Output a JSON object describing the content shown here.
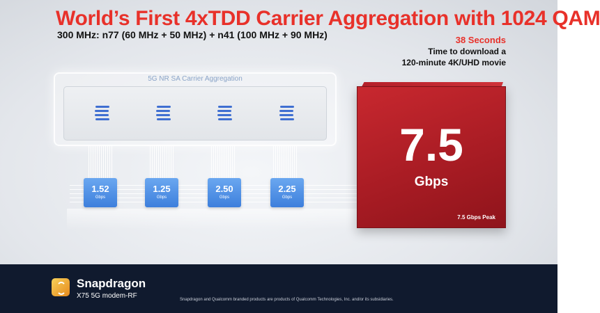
{
  "header": {
    "title": "World’s First 4xTDD Carrier Aggregation with 1024 QAM",
    "subtitle": "300 MHz: n77 (60 MHz + 50 MHz) + n41 (100 MHz + 90 MHz)"
  },
  "download_stat": {
    "seconds": "38 Seconds",
    "desc_line1": "Time to download a",
    "desc_line2": "120-minute 4K/UHD movie"
  },
  "carrier_aggregation": {
    "label": "5G NR SA Carrier Aggregation",
    "icon": "layered-stack-icon",
    "icon_color": "#3f6fd1"
  },
  "carriers": [
    {
      "value": "1.52",
      "unit": "Gbps"
    },
    {
      "value": "1.25",
      "unit": "Gbps"
    },
    {
      "value": "2.50",
      "unit": "Gbps"
    },
    {
      "value": "2.25",
      "unit": "Gbps"
    }
  ],
  "total": {
    "value": "7.5",
    "unit": "Gbps",
    "peak_label": "7.5 Gbps Peak",
    "color": "#b8202a"
  },
  "footer": {
    "brand": "Snapdragon",
    "product": "X75 5G modem-RF",
    "disclaimer": "Snapdragon and Qualcomm branded products are products of Qualcomm Technologies, Inc. and/or its subsidiaries.",
    "logo_icon": "snapdragon-logo-icon"
  },
  "colors": {
    "accent_red": "#e8312a",
    "chip_blue": "#3d7fdc",
    "footer_bg": "#101a2e"
  }
}
